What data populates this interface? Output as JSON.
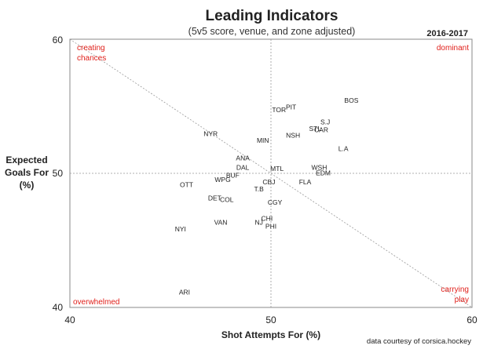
{
  "chart_data": {
    "type": "scatter",
    "title": "Leading Indicators",
    "subtitle": "(5v5 score, venue, and zone adjusted)",
    "season": "2016-2017",
    "xlabel": "Shot Attempts For (%)",
    "ylabel": [
      "Expected",
      "Goals For",
      "(%)"
    ],
    "xlim": [
      40,
      60
    ],
    "ylim": [
      40,
      60
    ],
    "xticks": [
      "40",
      "50",
      "60"
    ],
    "yticks": [
      "40",
      "50",
      "60"
    ],
    "reference_lines": {
      "x": 50,
      "y": 50,
      "diagonal": "from (40,60) to (60,40)"
    },
    "quadrant_labels": {
      "top_left": [
        "creating",
        "chances"
      ],
      "top_right": [
        "dominant"
      ],
      "bottom_left": [
        "overwhelmed"
      ],
      "bottom_right": [
        "carrying",
        "play"
      ]
    },
    "credit": "data courtesy of corsica.hockey",
    "colors": {
      "quadrant_text": "#e0201b",
      "frame": "#888888",
      "ref_lines": "#999999"
    },
    "points": [
      {
        "label": "BOS",
        "x": 54.0,
        "y": 55.4
      },
      {
        "label": "PIT",
        "x": 51.0,
        "y": 54.9
      },
      {
        "label": "TOR",
        "x": 50.4,
        "y": 54.7
      },
      {
        "label": "S.J",
        "x": 52.7,
        "y": 53.8
      },
      {
        "label": "STL",
        "x": 52.2,
        "y": 53.3
      },
      {
        "label": "CAR",
        "x": 52.5,
        "y": 53.2
      },
      {
        "label": "NSH",
        "x": 51.1,
        "y": 52.8
      },
      {
        "label": "NYR",
        "x": 47.0,
        "y": 52.9
      },
      {
        "label": "MIN",
        "x": 49.6,
        "y": 52.4
      },
      {
        "label": "L.A",
        "x": 53.6,
        "y": 51.8
      },
      {
        "label": "ANA",
        "x": 48.6,
        "y": 51.1
      },
      {
        "label": "DAL",
        "x": 48.6,
        "y": 50.4
      },
      {
        "label": "MTL",
        "x": 50.3,
        "y": 50.3
      },
      {
        "label": "WSH",
        "x": 52.4,
        "y": 50.4
      },
      {
        "label": "EDM",
        "x": 52.6,
        "y": 50.0
      },
      {
        "label": "BUF",
        "x": 48.1,
        "y": 49.8
      },
      {
        "label": "WPG",
        "x": 47.6,
        "y": 49.5
      },
      {
        "label": "CBJ",
        "x": 49.9,
        "y": 49.3
      },
      {
        "label": "FLA",
        "x": 51.7,
        "y": 49.3
      },
      {
        "label": "OTT",
        "x": 45.8,
        "y": 49.1
      },
      {
        "label": "T.B",
        "x": 49.4,
        "y": 48.8
      },
      {
        "label": "DET",
        "x": 47.2,
        "y": 48.1
      },
      {
        "label": "COL",
        "x": 47.8,
        "y": 48.0
      },
      {
        "label": "CGY",
        "x": 50.2,
        "y": 47.8
      },
      {
        "label": "CHI",
        "x": 49.8,
        "y": 46.6
      },
      {
        "label": "VAN",
        "x": 47.5,
        "y": 46.3
      },
      {
        "label": "NJ",
        "x": 49.4,
        "y": 46.3
      },
      {
        "label": "PHI",
        "x": 50.0,
        "y": 46.0
      },
      {
        "label": "NYI",
        "x": 45.5,
        "y": 45.8
      },
      {
        "label": "ARI",
        "x": 45.7,
        "y": 41.1
      }
    ]
  }
}
